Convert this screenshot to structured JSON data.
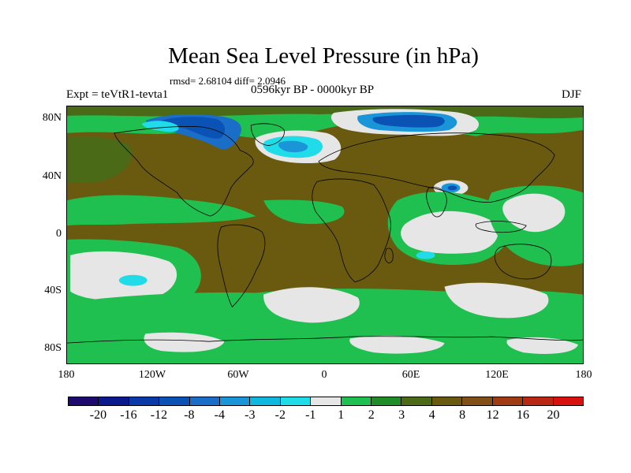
{
  "title": "Mean Sea Level Pressure (in hPa)",
  "stats": "rmsd= 2.68104 diff= 2.0946",
  "experiment": "Expt = teVtR1-tevta1",
  "period": "0596kyr BP - 0000kyr BP",
  "season": "DJF",
  "lat_labels": [
    "80N",
    "40N",
    "0",
    "40S",
    "80S"
  ],
  "lon_labels": [
    "180",
    "120W",
    "60W",
    "0",
    "60E",
    "120E",
    "180"
  ],
  "colorbar": {
    "colors": [
      "#1e0a6e",
      "#0a1a8c",
      "#0a3aa8",
      "#0a52b4",
      "#1a6ec8",
      "#1a96d8",
      "#10b8e0",
      "#20dce8",
      "#e6e6e6",
      "#20c050",
      "#208c28",
      "#4a6a18",
      "#6a5a10",
      "#805018",
      "#a03c14",
      "#b82814",
      "#d81010"
    ],
    "labels": [
      "-20",
      "-16",
      "-12",
      "-8",
      "-4",
      "-3",
      "-2",
      "-1",
      "1",
      "2",
      "3",
      "4",
      "8",
      "12",
      "16",
      "20"
    ]
  }
}
